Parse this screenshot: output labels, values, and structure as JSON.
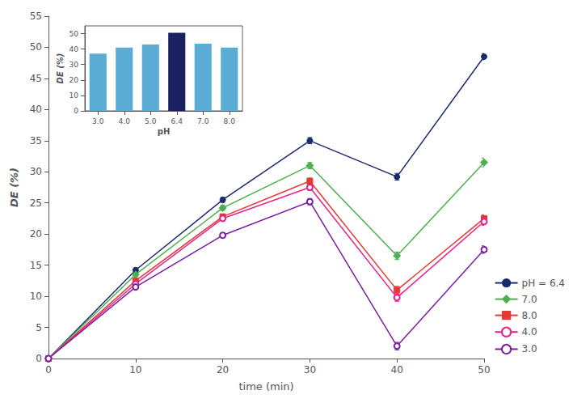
{
  "chart_data": [
    {
      "type": "line",
      "xlabel": "time (min)",
      "ylabel": "DE (%)",
      "x": [
        0,
        10,
        20,
        30,
        40,
        50
      ],
      "series": [
        {
          "name": "pH = 6.4",
          "color": "#1b2a6b",
          "marker": "circle",
          "values": [
            0,
            14.2,
            25.5,
            35.0,
            29.2,
            48.5
          ],
          "errors": [
            0,
            0.35,
            0.4,
            0.5,
            0.55,
            0.5
          ]
        },
        {
          "name": "7.0",
          "color": "#4caf50",
          "marker": "diamond",
          "values": [
            0,
            13.5,
            24.2,
            31.0,
            16.5,
            31.5
          ],
          "errors": [
            0,
            0.3,
            0.4,
            0.5,
            0.6,
            0.7
          ]
        },
        {
          "name": "8.0",
          "color": "#e53935",
          "marker": "square",
          "values": [
            0,
            12.5,
            22.8,
            28.5,
            11.0,
            22.5
          ],
          "errors": [
            0,
            0.3,
            0.4,
            0.5,
            0.6,
            0.6
          ]
        },
        {
          "name": "4.0",
          "color": "#e91e8c",
          "marker": "circle_open",
          "values": [
            0,
            12.0,
            22.5,
            27.5,
            9.8,
            22.0
          ],
          "errors": [
            0,
            0.3,
            0.4,
            0.5,
            0.6,
            0.6
          ]
        },
        {
          "name": "3.0",
          "color": "#7b1fa2",
          "marker": "circle_open",
          "values": [
            0,
            11.5,
            19.8,
            25.2,
            2.0,
            17.5
          ],
          "errors": [
            0,
            0.3,
            0.4,
            0.5,
            0.6,
            0.6
          ]
        }
      ],
      "xlim": [
        0,
        50
      ],
      "ylim": [
        0,
        55
      ],
      "xticks": [
        0,
        10,
        20,
        30,
        40,
        50
      ],
      "yticks": [
        0,
        5,
        10,
        15,
        20,
        25,
        30,
        35,
        40,
        45,
        50,
        55
      ],
      "grid": false,
      "legend": "lower right"
    },
    {
      "type": "bar",
      "xlabel": "pH",
      "ylabel": "DE (%)",
      "categories": [
        "3.0",
        "4.0",
        "5.0",
        "6.4",
        "7.0",
        "8.0"
      ],
      "values": [
        37.0,
        41.0,
        43.0,
        50.5,
        43.5,
        41.0
      ],
      "colors": [
        "#5bacd4",
        "#5bacd4",
        "#5bacd4",
        "#1a2060",
        "#5bacd4",
        "#5bacd4"
      ],
      "ylim": [
        0,
        55
      ],
      "yticks": [
        0,
        10,
        20,
        30,
        40,
        50
      ],
      "grid": false
    }
  ]
}
